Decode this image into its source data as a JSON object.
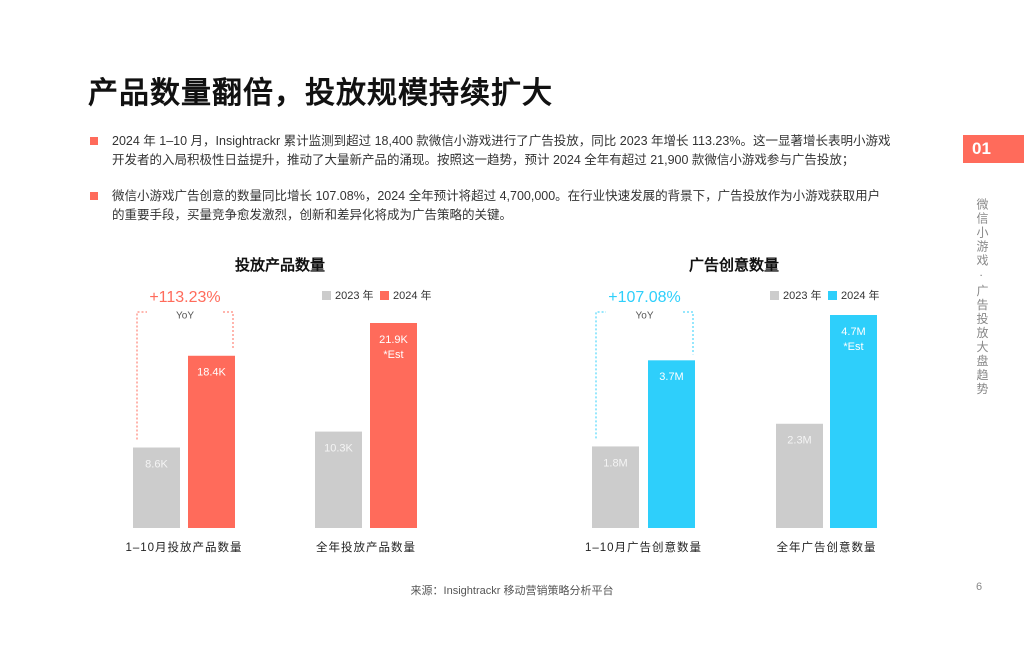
{
  "header": {
    "title": "产品数量翻倍，投放规模持续扩大"
  },
  "bullets": [
    "2024 年 1–10 月，Insightrackr 累计监测到超过 18,400 款微信小游戏进行了广告投放，同比 2023 年增长 113.23%。这一显著增长表明小游戏开发者的入局积极性日益提升，推动了大量新产品的涌现。按照这一趋势，预计 2024 全年有超过 21,900 款微信小游戏参与广告投放；",
    "微信小游戏广告创意的数量同比增长 107.08%，2024 全年预计将超过 4,700,000。在行业快速发展的背景下，广告投放作为小游戏获取用户的重要手段，买量竞争愈发激烈，创新和差异化将成为广告策略的关键。"
  ],
  "side_tab": {
    "number": "01",
    "label": "微信小游戏 · 广告投放大盘趋势"
  },
  "footer": {
    "source": "来源：Insightrackr 移动营销策略分析平台",
    "page": "6"
  },
  "chart_data": [
    {
      "type": "bar",
      "title": "投放产品数量",
      "categories": [
        "1–10月投放产品数量",
        "全年投放产品数量"
      ],
      "series": [
        {
          "name": "2023 年",
          "color": "#cccccc",
          "values": [
            8600,
            10300
          ],
          "value_labels": [
            "8.6K",
            "10.3K"
          ]
        },
        {
          "name": "2024 年",
          "color": "#ff6b5b",
          "values": [
            18400,
            21900
          ],
          "value_labels": [
            "18.4K",
            "21.9K"
          ]
        }
      ],
      "yoy_change": "+113.23%",
      "yoy_label": "YoY",
      "estimate_note": "*Est"
    },
    {
      "type": "bar",
      "title": "广告创意数量",
      "categories": [
        "1–10月广告创意数量",
        "全年广告创意数量"
      ],
      "series": [
        {
          "name": "2023 年",
          "color": "#cccccc",
          "values": [
            1800000,
            2300000
          ],
          "value_labels": [
            "1.8M",
            "2.3M"
          ]
        },
        {
          "name": "2024 年",
          "color": "#2ecffb",
          "values": [
            3700000,
            4700000
          ],
          "value_labels": [
            "3.7M",
            "4.7M"
          ]
        }
      ],
      "yoy_change": "+107.08%",
      "yoy_label": "YoY",
      "estimate_note": "*Est"
    }
  ]
}
